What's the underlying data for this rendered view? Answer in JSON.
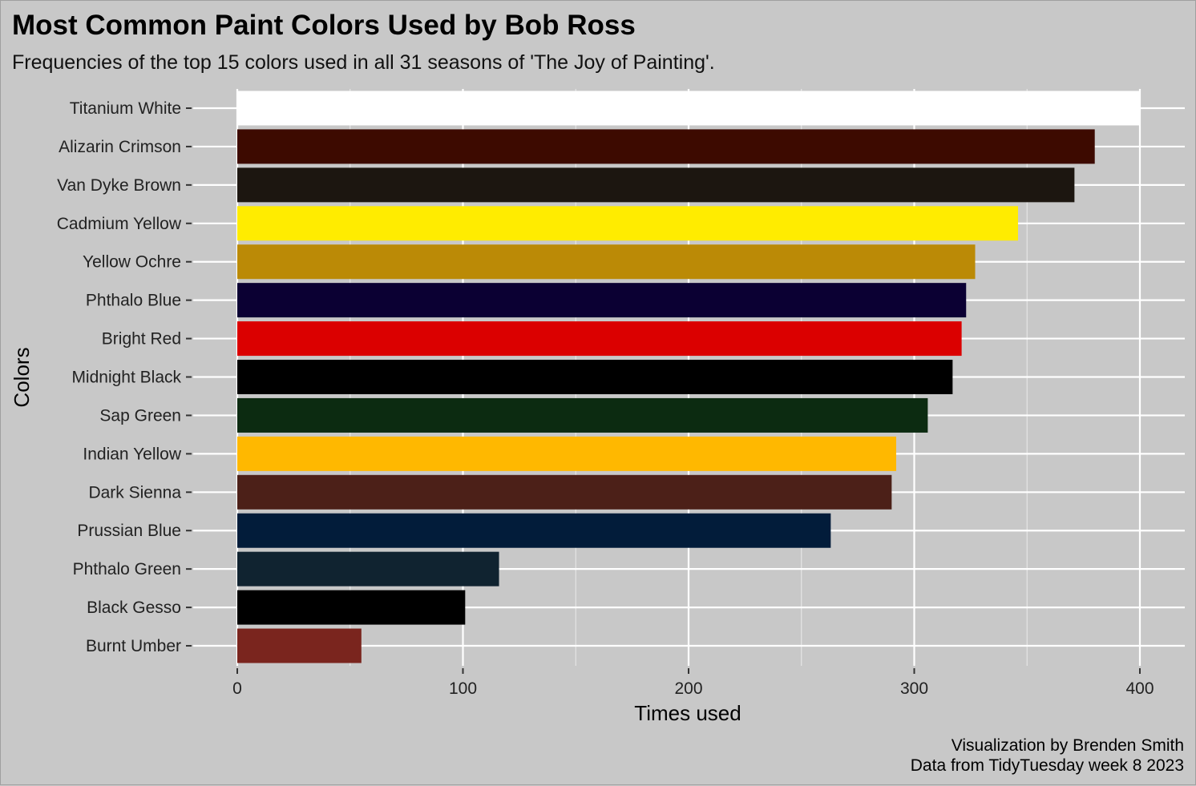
{
  "chart_data": {
    "type": "bar",
    "orientation": "horizontal",
    "title": "Most Common Paint Colors Used by Bob Ross",
    "subtitle": "Frequencies of the top 15 colors used in all 31 seasons of 'The Joy of Painting'.",
    "xlabel": "Times used",
    "ylabel": "Colors",
    "xlim": [
      0,
      400
    ],
    "xticks": [
      0,
      100,
      200,
      300,
      400
    ],
    "grid": true,
    "legend": "none",
    "caption": [
      "Visualization by Brenden Smith",
      "Data from TidyTuesday week 8 2023"
    ],
    "categories": [
      "Titanium White",
      "Alizarin Crimson",
      "Van Dyke Brown",
      "Cadmium Yellow",
      "Yellow Ochre",
      "Phthalo Blue",
      "Bright Red",
      "Midnight Black",
      "Sap Green",
      "Indian Yellow",
      "Dark Sienna",
      "Prussian Blue",
      "Phthalo Green",
      "Black Gesso",
      "Burnt Umber"
    ],
    "values": [
      400,
      380,
      371,
      346,
      327,
      323,
      321,
      317,
      306,
      292,
      290,
      263,
      116,
      101,
      55
    ],
    "colors": [
      "#FFFFFF",
      "#3D0A00",
      "#1C1610",
      "#FFEC00",
      "#BB8A06",
      "#0B0033",
      "#DB0000",
      "#000000",
      "#0C2B11",
      "#FFB800",
      "#4C2018",
      "#021C3A",
      "#102330",
      "#000000",
      "#7A251E"
    ]
  }
}
